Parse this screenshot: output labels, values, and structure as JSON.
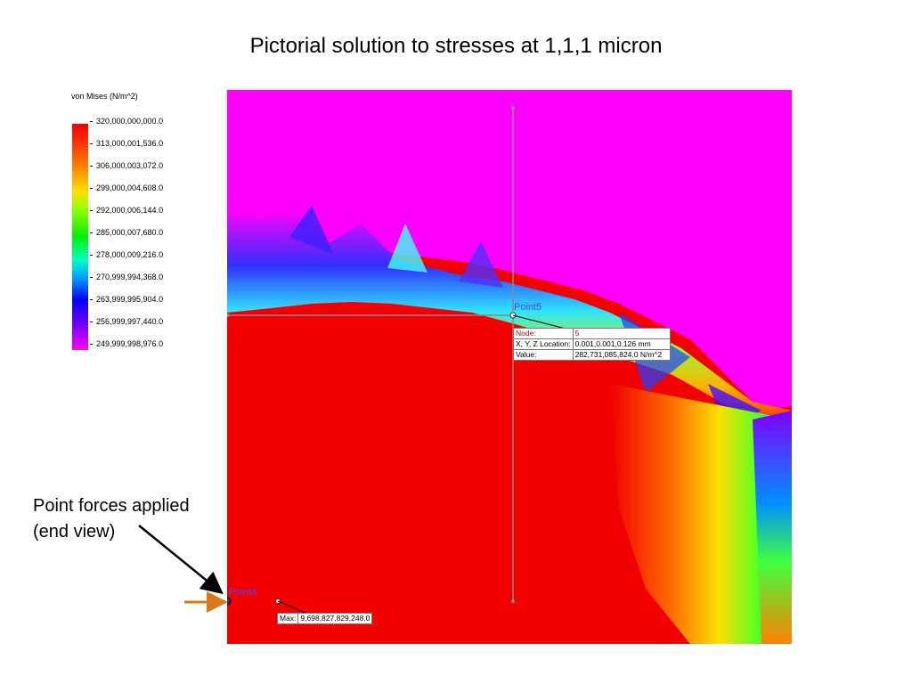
{
  "slide": {
    "title": "Pictorial solution to stresses at 1,1,1 micron"
  },
  "legend": {
    "title": "von Mises (N/m^2)",
    "ticks": [
      "320,000,000,000.0",
      "313,000,001,536.0",
      "306,000,003,072.0",
      "299,000,004,608.0",
      "292,000,006,144.0",
      "285,000,007,680.0",
      "278,000,009,216.0",
      "270,999,994,368.0",
      "263,999,995,904.0",
      "256,999,997,440.0",
      "249,999,998,976.0"
    ]
  },
  "probe": {
    "point_label": "Point5",
    "node_label": "Node:",
    "node_value": "5",
    "location_label": "X, Y, Z Location:",
    "location_value": "0.001,0.001,0.126 mm",
    "value_label": "Value:",
    "value_value": "282,731,085,824.0 N/m^2"
  },
  "max_probe": {
    "point_label": "Point4",
    "max_label": "Max:",
    "max_value": "9,698,827,829,248.0"
  },
  "annotation": {
    "line1": "Point forces applied",
    "line2": "(end view)"
  },
  "colors": {
    "low": "#ff00ff",
    "high": "#f20000",
    "arrow_force": "#d97a1a",
    "probe_line": "#8a8a8a"
  }
}
